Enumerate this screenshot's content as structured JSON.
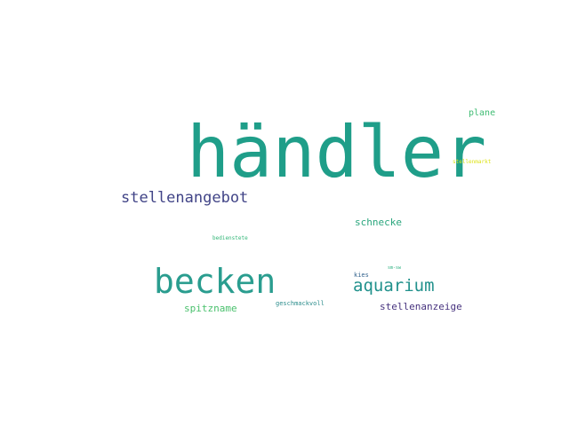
{
  "wordcloud": {
    "words": [
      {
        "text": "händler",
        "color": "#1f9e89"
      },
      {
        "text": "stellenangebot",
        "color": "#414487"
      },
      {
        "text": "becken",
        "color": "#2a9d8f"
      },
      {
        "text": "aquarium",
        "color": "#21918c"
      },
      {
        "text": "schnecke",
        "color": "#2aa67d"
      },
      {
        "text": "plane",
        "color": "#3fbc73"
      },
      {
        "text": "stellenmarkt",
        "color": "#dde318"
      },
      {
        "text": "bedienstete",
        "color": "#35b779"
      },
      {
        "text": "spitzname",
        "color": "#4ac16d"
      },
      {
        "text": "geschmackvoll",
        "color": "#2c8d8c"
      },
      {
        "text": "stellenanzeige",
        "color": "#46327e"
      },
      {
        "text": "kies",
        "color": "#33638d"
      },
      {
        "text": "sm-sw",
        "color": "#2bb07f"
      }
    ]
  }
}
